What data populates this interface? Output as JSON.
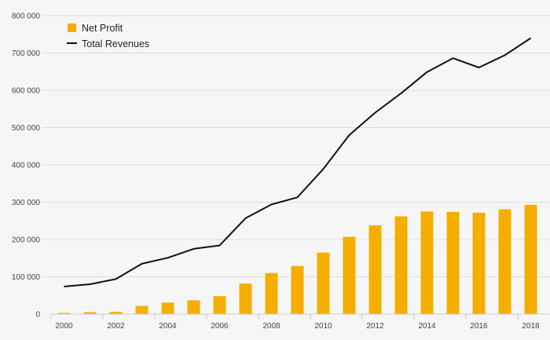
{
  "chart_data": {
    "type": "bar",
    "categories": [
      "2000",
      "2001",
      "2002",
      "2003",
      "2004",
      "2005",
      "2006",
      "2007",
      "2008",
      "2009",
      "2010",
      "2011",
      "2012",
      "2013",
      "2014",
      "2015",
      "2016",
      "2017",
      "2018"
    ],
    "x_tick_labels": [
      "2000",
      "2002",
      "2004",
      "2006",
      "2008",
      "2010",
      "2012",
      "2014",
      "2016",
      "2018"
    ],
    "y_tick_labels": [
      "0",
      "100 000",
      "200 000",
      "300 000",
      "400 000",
      "500 000",
      "600 000",
      "700 000",
      "800 000"
    ],
    "ylim": [
      0,
      800000
    ],
    "grid": true,
    "legend_position": "top-left",
    "series": [
      {
        "name": "Net Profit",
        "type": "bar",
        "color": "#f5ae00",
        "values": [
          3000,
          5000,
          6000,
          22000,
          31000,
          37000,
          48000,
          82000,
          110000,
          129000,
          165000,
          207000,
          238000,
          262000,
          275000,
          274000,
          272000,
          281000,
          293000
        ]
      },
      {
        "name": "Total Revenues",
        "type": "line",
        "color": "#111111",
        "values": [
          74000,
          80000,
          94000,
          135000,
          151000,
          175000,
          184000,
          257000,
          294000,
          313000,
          389000,
          480000,
          540000,
          592000,
          649000,
          686000,
          661000,
          694000,
          740000
        ]
      }
    ]
  }
}
